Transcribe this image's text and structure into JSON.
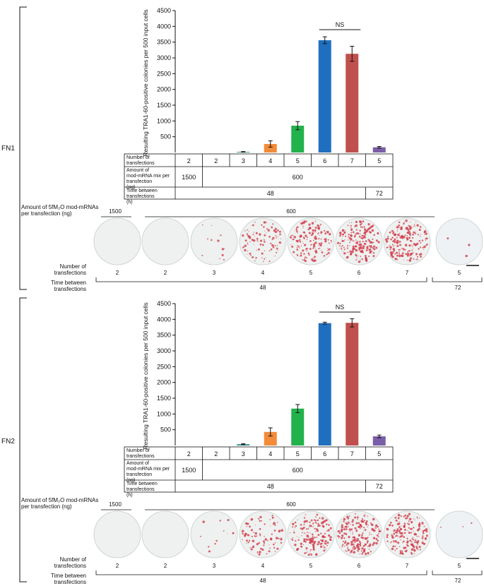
{
  "panels": [
    {
      "label": "FN1",
      "ylabel": "Resulting TRA1-60-positive colonies per 500 input cells",
      "sig_label": "NS",
      "table": {
        "row1_label": "Number of transfections",
        "row1_values": [
          "2",
          "2",
          "3",
          "4",
          "5",
          "6",
          "7",
          "5"
        ],
        "row2_label": "Amount of mod-mRNA mix per transfection (ng)",
        "row2_values": [
          "1500",
          "600"
        ],
        "row3_label": "Time between transfections (h)",
        "row3_values": [
          "48",
          "72"
        ]
      },
      "wells": {
        "amount_label": "Amount of 5fM₂O mod-mRNAs per transfection (ng)",
        "amount_values": [
          "1500",
          "600"
        ],
        "num_label": "Number of transfections",
        "num_values": [
          "2",
          "2",
          "3",
          "4",
          "5",
          "6",
          "7",
          "5"
        ],
        "time_label": "Time between transfections (h)",
        "time_values": [
          "48",
          "72"
        ]
      }
    },
    {
      "label": "FN2",
      "ylabel": "Resulting TRA1-60-positive colonies per 500 input cells",
      "sig_label": "NS",
      "table": {
        "row1_label": "Number of transfections",
        "row1_values": [
          "2",
          "2",
          "3",
          "4",
          "5",
          "6",
          "7",
          "5"
        ],
        "row2_label": "Amount of mod-mRNA mix per transfection (ng)",
        "row2_values": [
          "1500",
          "600"
        ],
        "row3_label": "Time between transfections (h)",
        "row3_values": [
          "48",
          "72"
        ]
      },
      "wells": {
        "amount_label": "Amount of 5fM₂O mod-mRNAs per transfection (ng)",
        "amount_values": [
          "1500",
          "600"
        ],
        "num_label": "Number of transfections",
        "num_values": [
          "2",
          "2",
          "3",
          "4",
          "5",
          "6",
          "7",
          "5"
        ],
        "time_label": "Time between transfections (h)",
        "time_values": [
          "48",
          "72"
        ]
      }
    }
  ],
  "chart_data": [
    {
      "type": "bar",
      "categories": [
        "2",
        "2",
        "3",
        "4",
        "5",
        "6",
        "7",
        "5"
      ],
      "values": [
        0,
        0,
        20,
        270,
        850,
        3560,
        3130,
        165
      ],
      "errors": [
        0,
        0,
        10,
        100,
        130,
        110,
        240,
        25
      ],
      "bar_colors": [
        "#cccccc",
        "#cccccc",
        "#2e8b8b",
        "#f28c3a",
        "#22b24c",
        "#1f6fbe",
        "#c0504d",
        "#7a5ea8"
      ],
      "yticks": [
        500,
        1000,
        1500,
        2000,
        2500,
        3000,
        3500,
        4000,
        4500
      ],
      "ylim": [
        0,
        4500
      ],
      "ylabel": "Resulting TRA1-60-positive colonies per 500 input cells",
      "grid": false,
      "annotation": "NS"
    },
    {
      "type": "bar",
      "categories": [
        "2",
        "2",
        "3",
        "4",
        "5",
        "6",
        "7",
        "5"
      ],
      "values": [
        0,
        0,
        40,
        430,
        1170,
        3880,
        3890,
        290
      ],
      "errors": [
        0,
        0,
        15,
        130,
        130,
        30,
        130,
        40
      ],
      "bar_colors": [
        "#cccccc",
        "#cccccc",
        "#2e8b8b",
        "#f28c3a",
        "#22b24c",
        "#1f6fbe",
        "#c0504d",
        "#7a5ea8"
      ],
      "yticks": [
        500,
        1000,
        1500,
        2000,
        2500,
        3000,
        3500,
        4000,
        4500
      ],
      "ylim": [
        0,
        4500
      ],
      "ylabel": "Resulting TRA1-60-positive colonies per 500 input cells",
      "grid": false,
      "annotation": "NS"
    }
  ]
}
